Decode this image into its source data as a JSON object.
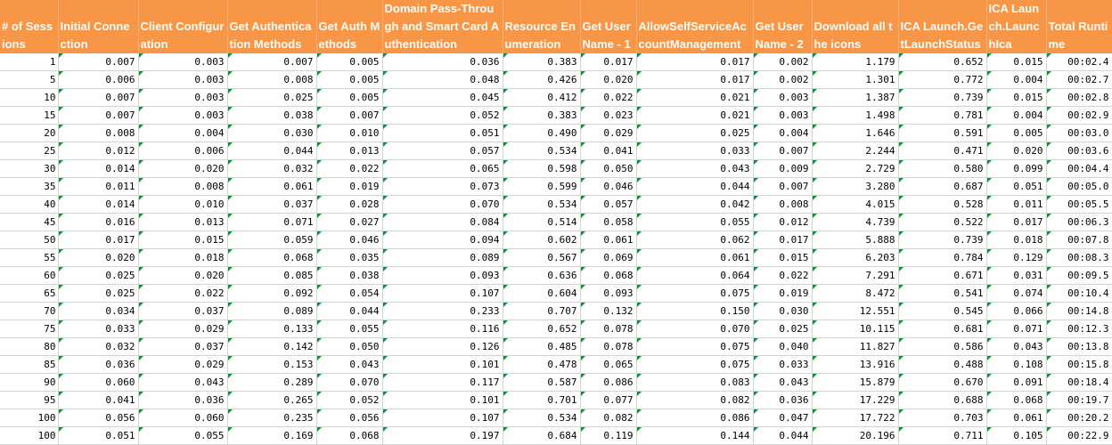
{
  "headers": [
    "# of Sessions",
    "Initial Connection",
    "Client Configuration",
    "Get Authentication Methods",
    "Get Auth Methods",
    "Domain Pass-Through and Smart Card Authentication",
    "Resource Enumeration",
    "Get User Name - 1",
    "AllowSelfServiceAccountManagement",
    "Get User Name - 2",
    "Download all the icons",
    "ICA Launch.GetLaunchStatus",
    "ICA Launch.LaunchIca",
    "Total Runtime"
  ],
  "rows": [
    [
      "1",
      "0.007",
      "0.003",
      "0.007",
      "0.005",
      "0.036",
      "0.383",
      "0.017",
      "0.017",
      "0.002",
      "1.179",
      "0.652",
      "0.015",
      "00:02.4"
    ],
    [
      "5",
      "0.006",
      "0.003",
      "0.008",
      "0.005",
      "0.048",
      "0.426",
      "0.020",
      "0.017",
      "0.002",
      "1.301",
      "0.772",
      "0.004",
      "00:02.7"
    ],
    [
      "10",
      "0.007",
      "0.003",
      "0.025",
      "0.005",
      "0.045",
      "0.412",
      "0.022",
      "0.021",
      "0.003",
      "1.387",
      "0.739",
      "0.015",
      "00:02.8"
    ],
    [
      "15",
      "0.007",
      "0.003",
      "0.038",
      "0.007",
      "0.052",
      "0.383",
      "0.023",
      "0.021",
      "0.003",
      "1.498",
      "0.781",
      "0.004",
      "00:02.9"
    ],
    [
      "20",
      "0.008",
      "0.004",
      "0.030",
      "0.010",
      "0.051",
      "0.490",
      "0.029",
      "0.025",
      "0.004",
      "1.646",
      "0.591",
      "0.005",
      "00:03.0"
    ],
    [
      "25",
      "0.012",
      "0.006",
      "0.044",
      "0.013",
      "0.057",
      "0.534",
      "0.041",
      "0.033",
      "0.007",
      "2.244",
      "0.471",
      "0.020",
      "00:03.6"
    ],
    [
      "30",
      "0.014",
      "0.020",
      "0.032",
      "0.022",
      "0.065",
      "0.598",
      "0.050",
      "0.043",
      "0.009",
      "2.729",
      "0.580",
      "0.099",
      "00:04.4"
    ],
    [
      "35",
      "0.011",
      "0.008",
      "0.061",
      "0.019",
      "0.073",
      "0.599",
      "0.046",
      "0.044",
      "0.007",
      "3.280",
      "0.687",
      "0.051",
      "00:05.0"
    ],
    [
      "40",
      "0.014",
      "0.010",
      "0.037",
      "0.028",
      "0.070",
      "0.534",
      "0.057",
      "0.042",
      "0.008",
      "4.015",
      "0.528",
      "0.011",
      "00:05.5"
    ],
    [
      "45",
      "0.016",
      "0.013",
      "0.071",
      "0.027",
      "0.084",
      "0.514",
      "0.058",
      "0.055",
      "0.012",
      "4.739",
      "0.522",
      "0.017",
      "00:06.3"
    ],
    [
      "50",
      "0.017",
      "0.015",
      "0.059",
      "0.046",
      "0.094",
      "0.602",
      "0.061",
      "0.062",
      "0.017",
      "5.888",
      "0.739",
      "0.018",
      "00:07.8"
    ],
    [
      "55",
      "0.020",
      "0.018",
      "0.068",
      "0.035",
      "0.089",
      "0.567",
      "0.069",
      "0.061",
      "0.015",
      "6.203",
      "0.784",
      "0.129",
      "00:08.3"
    ],
    [
      "60",
      "0.025",
      "0.020",
      "0.085",
      "0.038",
      "0.093",
      "0.636",
      "0.068",
      "0.064",
      "0.022",
      "7.291",
      "0.671",
      "0.031",
      "00:09.5"
    ],
    [
      "65",
      "0.025",
      "0.022",
      "0.092",
      "0.054",
      "0.107",
      "0.604",
      "0.093",
      "0.075",
      "0.019",
      "8.472",
      "0.541",
      "0.074",
      "00:10.4"
    ],
    [
      "70",
      "0.034",
      "0.037",
      "0.089",
      "0.044",
      "0.233",
      "0.707",
      "0.132",
      "0.150",
      "0.030",
      "12.551",
      "0.545",
      "0.066",
      "00:14.8"
    ],
    [
      "75",
      "0.033",
      "0.029",
      "0.133",
      "0.055",
      "0.116",
      "0.652",
      "0.078",
      "0.070",
      "0.025",
      "10.115",
      "0.681",
      "0.071",
      "00:12.3"
    ],
    [
      "80",
      "0.032",
      "0.037",
      "0.142",
      "0.050",
      "0.126",
      "0.485",
      "0.078",
      "0.075",
      "0.040",
      "11.827",
      "0.586",
      "0.043",
      "00:13.8"
    ],
    [
      "85",
      "0.036",
      "0.029",
      "0.153",
      "0.043",
      "0.101",
      "0.478",
      "0.065",
      "0.075",
      "0.033",
      "13.916",
      "0.488",
      "0.108",
      "00:15.8"
    ],
    [
      "90",
      "0.060",
      "0.043",
      "0.289",
      "0.070",
      "0.117",
      "0.587",
      "0.086",
      "0.083",
      "0.043",
      "15.879",
      "0.670",
      "0.091",
      "00:18.4"
    ],
    [
      "95",
      "0.041",
      "0.036",
      "0.265",
      "0.052",
      "0.101",
      "0.701",
      "0.077",
      "0.082",
      "0.036",
      "17.229",
      "0.688",
      "0.068",
      "00:19.7"
    ],
    [
      "100",
      "0.056",
      "0.060",
      "0.235",
      "0.056",
      "0.107",
      "0.534",
      "0.082",
      "0.086",
      "0.047",
      "17.722",
      "0.703",
      "0.061",
      "00:20.2"
    ],
    [
      "100",
      "0.051",
      "0.055",
      "0.169",
      "0.068",
      "0.197",
      "0.684",
      "0.119",
      "0.144",
      "0.044",
      "20.196",
      "0.711",
      "0.105",
      "00:22.9"
    ]
  ]
}
